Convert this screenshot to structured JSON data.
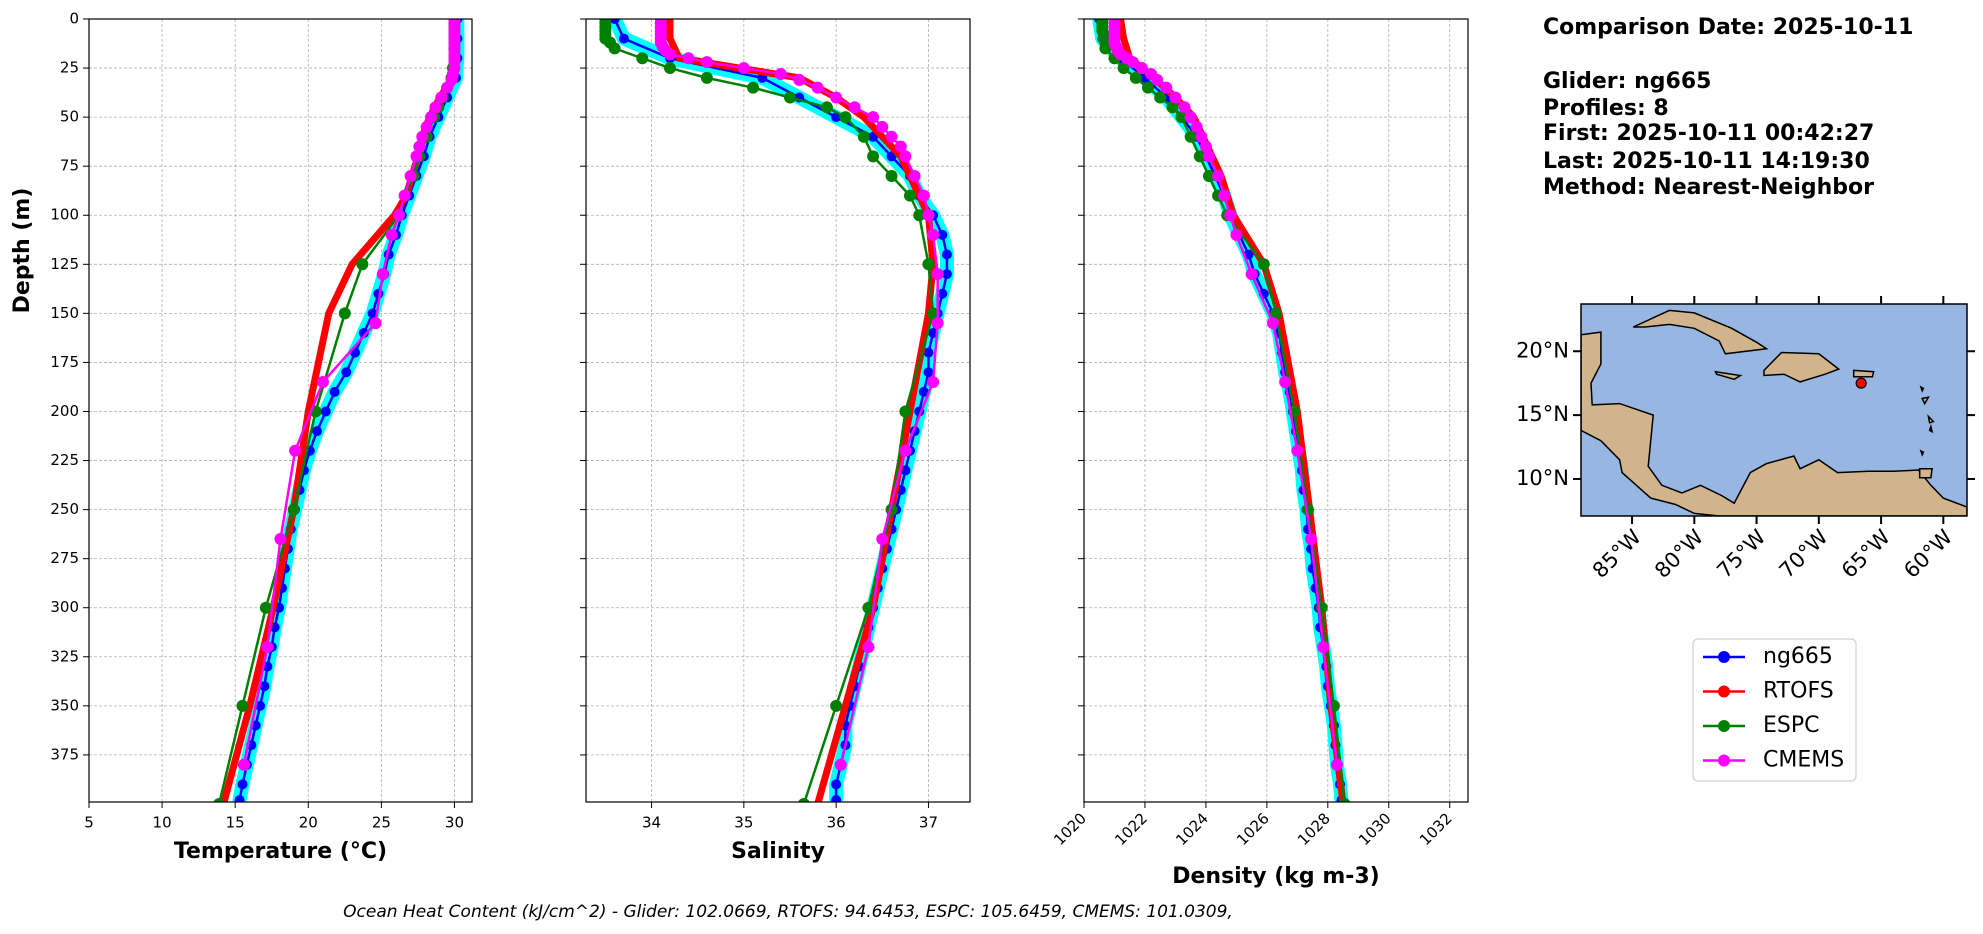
{
  "chart_data": [
    {
      "type": "profile",
      "xlabel": "Temperature (°C)",
      "ylabel": "Depth (m)",
      "show_ytick_labels": true,
      "xlim": [
        5,
        31.2
      ],
      "xticks": [
        5,
        10,
        15,
        20,
        25,
        30
      ],
      "ylim": [
        0,
        399
      ],
      "y_inverted": true,
      "yticks": [
        0,
        25,
        50,
        75,
        100,
        125,
        150,
        175,
        200,
        225,
        250,
        275,
        300,
        325,
        350,
        375
      ],
      "grid": true,
      "series": [
        {
          "name": "ng665",
          "color": "#0000ff",
          "halo_color": "#00ffff",
          "y": [
            0,
            10,
            20,
            30,
            40,
            50,
            60,
            70,
            80,
            90,
            100,
            110,
            120,
            130,
            140,
            150,
            160,
            170,
            180,
            190,
            200,
            210,
            220,
            230,
            240,
            250,
            260,
            270,
            280,
            290,
            300,
            310,
            320,
            330,
            340,
            350,
            360,
            370,
            380,
            390,
            398
          ],
          "values": [
            30.2,
            30.2,
            30.2,
            30.1,
            29.5,
            28.9,
            28.3,
            27.9,
            27.4,
            26.9,
            26.4,
            26.0,
            25.5,
            25.2,
            24.8,
            24.4,
            23.8,
            23.2,
            22.6,
            21.8,
            21.2,
            20.6,
            20.1,
            19.7,
            19.4,
            19.1,
            18.8,
            18.6,
            18.4,
            18.2,
            18.0,
            17.7,
            17.5,
            17.2,
            17.0,
            16.7,
            16.4,
            16.1,
            15.8,
            15.5,
            15.3
          ]
        },
        {
          "name": "RTOFS",
          "color": "#ff0000",
          "y": [
            0,
            10,
            20,
            30,
            40,
            50,
            60,
            70,
            80,
            90,
            100,
            125,
            150,
            200,
            250,
            300,
            350,
            400
          ],
          "values": [
            30.1,
            30.1,
            30.1,
            29.9,
            29.0,
            28.3,
            27.8,
            27.5,
            27.1,
            26.7,
            25.9,
            23.0,
            21.4,
            20.0,
            19.0,
            17.6,
            16.0,
            14.2
          ]
        },
        {
          "name": "ESPC",
          "color": "#008000",
          "y": [
            0,
            2,
            4,
            6,
            8,
            10,
            12,
            15,
            20,
            25,
            30,
            35,
            40,
            45,
            50,
            60,
            70,
            80,
            90,
            100,
            125,
            150,
            200,
            250,
            300,
            350,
            400
          ],
          "values": [
            30.0,
            30.0,
            30.0,
            30.0,
            30.0,
            30.0,
            30.0,
            30.0,
            30.0,
            29.9,
            29.8,
            29.5,
            29.2,
            28.9,
            28.6,
            28.1,
            27.6,
            27.2,
            26.6,
            26.2,
            23.7,
            22.5,
            20.5,
            19.0,
            17.1,
            15.5,
            13.9
          ]
        },
        {
          "name": "CMEMS",
          "color": "#ff00ff",
          "y": [
            0,
            2,
            4,
            6,
            8,
            10,
            12,
            14,
            16,
            18,
            20,
            22,
            25,
            28,
            31,
            35,
            40,
            45,
            50,
            55,
            60,
            65,
            70,
            80,
            90,
            100,
            110,
            130,
            155,
            185,
            220,
            265,
            320,
            380
          ],
          "values": [
            30.0,
            30.0,
            30.0,
            30.0,
            30.0,
            30.0,
            30.0,
            30.0,
            30.0,
            30.0,
            30.0,
            30.0,
            30.0,
            29.9,
            29.8,
            29.5,
            29.1,
            28.7,
            28.4,
            28.1,
            27.8,
            27.6,
            27.4,
            27.0,
            26.6,
            26.2,
            25.7,
            25.1,
            24.6,
            21.0,
            19.1,
            18.1,
            17.2,
            15.6
          ]
        }
      ]
    },
    {
      "type": "profile",
      "xlabel": "Salinity",
      "show_ytick_labels": false,
      "xlim": [
        33.29,
        37.45
      ],
      "xticks": [
        34,
        35,
        36,
        37
      ],
      "ylim": [
        0,
        399
      ],
      "y_inverted": true,
      "yticks": [
        0,
        25,
        50,
        75,
        100,
        125,
        150,
        175,
        200,
        225,
        250,
        275,
        300,
        325,
        350,
        375
      ],
      "grid": true,
      "series": [
        {
          "name": "ng665",
          "color": "#0000ff",
          "halo_color": "#00ffff",
          "y": [
            0,
            10,
            20,
            30,
            40,
            50,
            60,
            70,
            80,
            90,
            100,
            110,
            120,
            130,
            140,
            150,
            160,
            170,
            180,
            190,
            200,
            210,
            220,
            230,
            240,
            250,
            260,
            270,
            280,
            290,
            300,
            310,
            320,
            330,
            340,
            350,
            360,
            370,
            380,
            390,
            398
          ],
          "values": [
            33.6,
            33.7,
            34.2,
            35.2,
            35.6,
            36.0,
            36.4,
            36.6,
            36.8,
            36.9,
            37.05,
            37.15,
            37.2,
            37.2,
            37.15,
            37.1,
            37.05,
            37.0,
            37.0,
            36.95,
            36.9,
            36.85,
            36.8,
            36.75,
            36.7,
            36.65,
            36.6,
            36.55,
            36.5,
            36.45,
            36.4,
            36.35,
            36.3,
            36.25,
            36.2,
            36.15,
            36.1,
            36.1,
            36.05,
            36.0,
            36.0
          ]
        },
        {
          "name": "RTOFS",
          "color": "#ff0000",
          "y": [
            0,
            10,
            20,
            30,
            40,
            50,
            60,
            70,
            80,
            90,
            100,
            125,
            150,
            200,
            250,
            300,
            350,
            400
          ],
          "values": [
            34.2,
            34.2,
            34.3,
            35.6,
            36.0,
            36.3,
            36.5,
            36.7,
            36.8,
            36.9,
            37.0,
            37.05,
            37.0,
            36.8,
            36.6,
            36.4,
            36.1,
            35.8
          ]
        },
        {
          "name": "ESPC",
          "color": "#008000",
          "y": [
            0,
            2,
            4,
            6,
            8,
            10,
            12,
            15,
            20,
            25,
            30,
            35,
            40,
            45,
            50,
            60,
            70,
            80,
            90,
            100,
            125,
            150,
            200,
            250,
            300,
            350,
            400
          ],
          "values": [
            33.5,
            33.5,
            33.5,
            33.5,
            33.5,
            33.5,
            33.55,
            33.6,
            33.9,
            34.2,
            34.6,
            35.1,
            35.5,
            35.9,
            36.1,
            36.3,
            36.4,
            36.6,
            36.8,
            36.9,
            37.0,
            37.05,
            36.75,
            36.6,
            36.35,
            36.0,
            35.65
          ]
        },
        {
          "name": "CMEMS",
          "color": "#ff00ff",
          "y": [
            0,
            2,
            4,
            6,
            8,
            10,
            12,
            14,
            16,
            18,
            20,
            22,
            25,
            28,
            31,
            35,
            40,
            45,
            50,
            55,
            60,
            65,
            70,
            80,
            90,
            100,
            110,
            130,
            155,
            185,
            220,
            265,
            320,
            380
          ],
          "values": [
            34.1,
            34.1,
            34.1,
            34.1,
            34.1,
            34.1,
            34.1,
            34.12,
            34.15,
            34.2,
            34.4,
            34.6,
            35.0,
            35.4,
            35.6,
            35.8,
            36.0,
            36.2,
            36.4,
            36.5,
            36.6,
            36.7,
            36.75,
            36.85,
            36.95,
            37.0,
            37.05,
            37.1,
            37.1,
            37.05,
            36.75,
            36.5,
            36.35,
            36.05
          ]
        }
      ]
    },
    {
      "type": "profile",
      "xlabel": "Density (kg m-3)",
      "show_ytick_labels": false,
      "rotate_xticks": true,
      "xlim": [
        1020,
        1032.6
      ],
      "xticks": [
        1020,
        1022,
        1024,
        1026,
        1028,
        1030,
        1032
      ],
      "ylim": [
        0,
        399
      ],
      "y_inverted": true,
      "yticks": [
        0,
        25,
        50,
        75,
        100,
        125,
        150,
        175,
        200,
        225,
        250,
        275,
        300,
        325,
        350,
        375
      ],
      "grid": true,
      "series": [
        {
          "name": "ng665",
          "color": "#0000ff",
          "halo_color": "#00ffff",
          "y": [
            0,
            10,
            20,
            30,
            40,
            50,
            60,
            70,
            80,
            90,
            100,
            110,
            120,
            130,
            140,
            150,
            160,
            170,
            180,
            190,
            200,
            210,
            220,
            230,
            240,
            250,
            260,
            270,
            280,
            290,
            300,
            310,
            320,
            330,
            340,
            350,
            360,
            370,
            380,
            390,
            398
          ],
          "values": [
            1020.5,
            1020.6,
            1021.2,
            1022.0,
            1022.7,
            1023.2,
            1023.7,
            1024.0,
            1024.3,
            1024.6,
            1024.8,
            1025.1,
            1025.4,
            1025.6,
            1025.9,
            1026.2,
            1026.4,
            1026.5,
            1026.6,
            1026.75,
            1026.85,
            1026.95,
            1027.05,
            1027.15,
            1027.2,
            1027.3,
            1027.35,
            1027.45,
            1027.5,
            1027.6,
            1027.7,
            1027.75,
            1027.85,
            1027.95,
            1028.0,
            1028.1,
            1028.2,
            1028.25,
            1028.3,
            1028.4,
            1028.45
          ]
        },
        {
          "name": "RTOFS",
          "color": "#ff0000",
          "y": [
            0,
            10,
            20,
            30,
            40,
            50,
            60,
            70,
            80,
            90,
            100,
            125,
            150,
            200,
            250,
            300,
            350,
            400
          ],
          "values": [
            1021.2,
            1021.3,
            1021.5,
            1022.3,
            1023.0,
            1023.6,
            1023.9,
            1024.2,
            1024.5,
            1024.7,
            1024.9,
            1025.9,
            1026.4,
            1027.0,
            1027.4,
            1027.8,
            1028.1,
            1028.5
          ]
        },
        {
          "name": "ESPC",
          "color": "#008000",
          "y": [
            0,
            2,
            4,
            6,
            8,
            10,
            12,
            15,
            20,
            25,
            30,
            35,
            40,
            45,
            50,
            60,
            70,
            80,
            90,
            100,
            125,
            150,
            200,
            250,
            300,
            350,
            400
          ],
          "values": [
            1020.6,
            1020.6,
            1020.6,
            1020.6,
            1020.65,
            1020.65,
            1020.7,
            1020.7,
            1021.0,
            1021.3,
            1021.7,
            1022.1,
            1022.5,
            1022.9,
            1023.2,
            1023.5,
            1023.8,
            1024.1,
            1024.4,
            1024.7,
            1025.9,
            1026.3,
            1026.9,
            1027.35,
            1027.8,
            1028.2,
            1028.55
          ]
        },
        {
          "name": "CMEMS",
          "color": "#ff00ff",
          "y": [
            0,
            2,
            4,
            6,
            8,
            10,
            12,
            14,
            16,
            18,
            20,
            22,
            25,
            28,
            31,
            35,
            40,
            45,
            50,
            55,
            60,
            65,
            70,
            80,
            90,
            100,
            110,
            130,
            155,
            185,
            220,
            265,
            320,
            380
          ],
          "values": [
            1021.0,
            1021.0,
            1021.0,
            1021.0,
            1021.0,
            1021.0,
            1021.0,
            1021.05,
            1021.1,
            1021.2,
            1021.4,
            1021.6,
            1021.9,
            1022.2,
            1022.4,
            1022.7,
            1023.0,
            1023.3,
            1023.5,
            1023.7,
            1023.85,
            1024.0,
            1024.1,
            1024.4,
            1024.6,
            1024.8,
            1025.0,
            1025.5,
            1026.2,
            1026.6,
            1027.0,
            1027.45,
            1027.85,
            1028.3
          ]
        }
      ]
    },
    {
      "type": "map",
      "xlim": [
        -89.1,
        -58.1
      ],
      "ylim": [
        7.1,
        23.7
      ],
      "xticks": [
        {
          "value": -85,
          "label": "85°W"
        },
        {
          "value": -80,
          "label": "80°W"
        },
        {
          "value": -75,
          "label": "75°W"
        },
        {
          "value": -70,
          "label": "70°W"
        },
        {
          "value": -65,
          "label": "65°W"
        },
        {
          "value": -60,
          "label": "60°W"
        }
      ],
      "yticks": [
        {
          "value": 10,
          "label": "10°N"
        },
        {
          "value": 15,
          "label": "15°N"
        },
        {
          "value": 20,
          "label": "20°N"
        }
      ],
      "ocean_color": "#97b6e1",
      "land_color": "#d2b48c",
      "points": {
        "x": [
          -66.6
        ],
        "y": [
          17.5
        ],
        "color": "#ff0000"
      }
    }
  ],
  "info": [
    "Comparison Date: 2025-10-11",
    "Glider: ng665",
    "Profiles: 8",
    "First: 2025-10-11 00:42:27",
    "Last: 2025-10-11 14:19:30",
    "Method: Nearest-Neighbor"
  ],
  "footer": "Ocean Heat Content (kJ/cm^2) - Glider: 102.0669,  RTOFS: 94.6453,  ESPC: 105.6459,  CMEMS: 101.0309,"
}
